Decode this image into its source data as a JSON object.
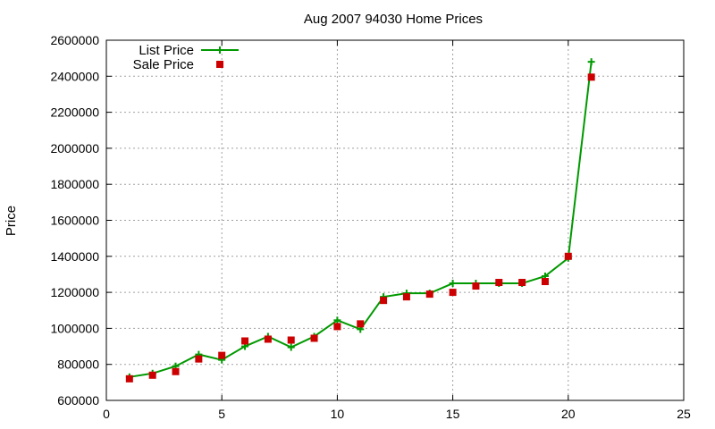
{
  "chart_data": {
    "type": "line",
    "title": "Aug 2007 94030 Home Prices",
    "xlabel": "",
    "ylabel": "Price",
    "xlim": [
      0,
      25
    ],
    "ylim": [
      600000,
      2600000
    ],
    "xticks": [
      0,
      5,
      10,
      15,
      20,
      25
    ],
    "yticks": [
      600000,
      800000,
      1000000,
      1200000,
      1400000,
      1600000,
      1800000,
      2000000,
      2200000,
      2400000,
      2600000
    ],
    "grid": true,
    "legend": "top-left",
    "series": [
      {
        "name": "List Price",
        "style": "line-plus",
        "color": "#009900",
        "x": [
          1,
          2,
          3,
          4,
          5,
          6,
          7,
          8,
          9,
          10,
          11,
          12,
          13,
          14,
          15,
          16,
          17,
          18,
          19,
          20,
          21
        ],
        "y": [
          730000,
          750000,
          790000,
          855000,
          825000,
          900000,
          955000,
          895000,
          955000,
          1045000,
          995000,
          1175000,
          1195000,
          1195000,
          1250000,
          1250000,
          1250000,
          1250000,
          1290000,
          1390000,
          2480000
        ]
      },
      {
        "name": "Sale Price",
        "style": "square-points",
        "color": "#cc0000",
        "x": [
          1,
          2,
          3,
          4,
          5,
          6,
          7,
          8,
          9,
          10,
          11,
          12,
          13,
          14,
          15,
          16,
          17,
          18,
          19,
          20,
          21
        ],
        "y": [
          720000,
          740000,
          760000,
          830000,
          850000,
          930000,
          940000,
          935000,
          945000,
          1010000,
          1025000,
          1155000,
          1175000,
          1190000,
          1200000,
          1235000,
          1255000,
          1255000,
          1260000,
          1400000,
          2395000
        ]
      }
    ]
  }
}
